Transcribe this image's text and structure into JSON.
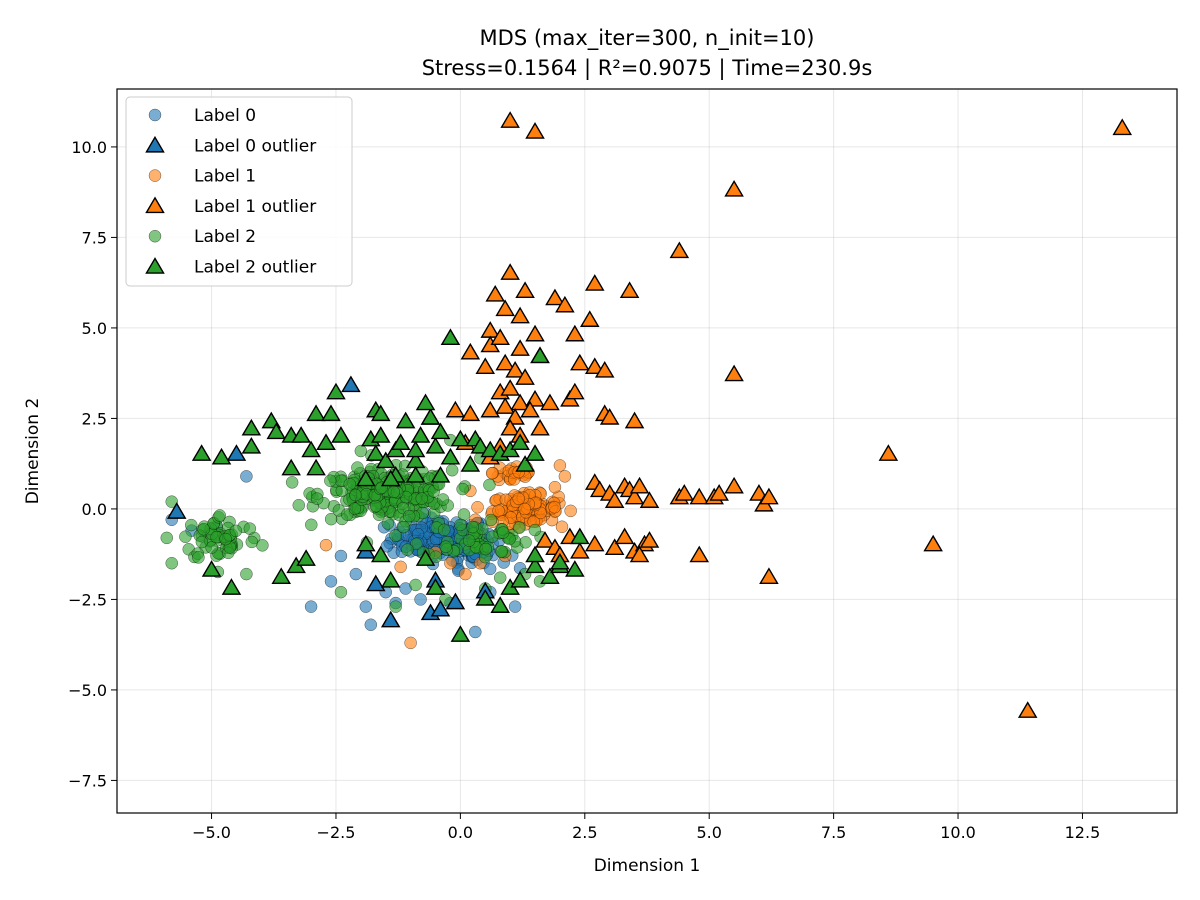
{
  "chart_data": {
    "type": "scatter",
    "title": "MDS (max_iter=300, n_init=10)",
    "subtitle": "Stress=0.1564 | R²=0.9075 | Time=230.9s",
    "xlabel": "Dimension 1",
    "ylabel": "Dimension 2",
    "xlim": [
      -6.9,
      14.4
    ],
    "ylim": [
      -8.4,
      11.6
    ],
    "xticks": [
      -5.0,
      -2.5,
      0.0,
      2.5,
      5.0,
      7.5,
      10.0,
      12.5
    ],
    "xtick_labels": [
      "−5.0",
      "−2.5",
      "0.0",
      "2.5",
      "5.0",
      "7.5",
      "10.0",
      "12.5"
    ],
    "yticks": [
      -7.5,
      -5.0,
      -2.5,
      0.0,
      2.5,
      5.0,
      7.5,
      10.0
    ],
    "ytick_labels": [
      "−7.5",
      "−5.0",
      "−2.5",
      "0.0",
      "2.5",
      "5.0",
      "7.5",
      "10.0"
    ],
    "grid": true,
    "legend_position": "top-left",
    "series": [
      {
        "name": "Label 0",
        "marker": "circle",
        "color": "#1f77b4",
        "clusters": [
          [
            -0.4,
            -0.8,
            0.9,
            0.5,
            160
          ],
          [
            0.3,
            -1.2,
            0.6,
            0.4,
            40
          ]
        ],
        "points": [
          [
            -5.8,
            -0.3
          ],
          [
            -5.4,
            -0.6
          ],
          [
            -4.9,
            -0.5
          ],
          [
            -4.3,
            0.9
          ],
          [
            -3,
            -2.7
          ],
          [
            -2.6,
            -2
          ],
          [
            -2.4,
            -1.3
          ],
          [
            -2.1,
            -1.8
          ],
          [
            -1.9,
            -2.7
          ],
          [
            -1.8,
            -3.2
          ],
          [
            -1.5,
            -2.3
          ],
          [
            -1.3,
            -2.6
          ],
          [
            -1.1,
            -2.2
          ],
          [
            -0.8,
            -2.5
          ],
          [
            -0.2,
            -2.6
          ],
          [
            0.3,
            -3.4
          ],
          [
            0.6,
            -2.3
          ],
          [
            1.1,
            -2.7
          ],
          [
            1.3,
            -0.3
          ],
          [
            1.5,
            0.2
          ]
        ]
      },
      {
        "name": "Label 0 outlier",
        "marker": "triangle",
        "color": "#1f77b4",
        "points": [
          [
            -5.7,
            -0.1
          ],
          [
            -4.5,
            1.5
          ],
          [
            -2.2,
            3.4
          ],
          [
            -1.9,
            -1.2
          ],
          [
            -1.7,
            -2.1
          ],
          [
            -1.4,
            -3.1
          ],
          [
            -0.6,
            -2.9
          ],
          [
            -0.6,
            2.5
          ],
          [
            -0.5,
            -2
          ],
          [
            -0.4,
            -2.8
          ],
          [
            -0.1,
            -2.6
          ],
          [
            0.5,
            -2.3
          ]
        ]
      },
      {
        "name": "Label 1",
        "marker": "circle",
        "color": "#ff7f0e",
        "clusters": [
          [
            1.3,
            0.0,
            0.6,
            0.35,
            130
          ],
          [
            1.1,
            1.0,
            0.4,
            0.3,
            30
          ]
        ],
        "points": [
          [
            -1,
            -3.7
          ],
          [
            -2.7,
            -1
          ],
          [
            -1.2,
            -1.6
          ],
          [
            -0.5,
            -1.2
          ],
          [
            -0.2,
            -1.5
          ],
          [
            0.1,
            -1.8
          ],
          [
            0.4,
            -1.5
          ],
          [
            0.9,
            -1.3
          ],
          [
            2.0,
            1.2
          ],
          [
            2.1,
            0.9
          ],
          [
            1.9,
            0.6
          ],
          [
            0.3,
            -0.3
          ],
          [
            0.2,
            0.5
          ]
        ]
      },
      {
        "name": "Label 1 outlier",
        "marker": "triangle",
        "color": "#ff7f0e",
        "points": [
          [
            1,
            10.7
          ],
          [
            1.5,
            10.4
          ],
          [
            13.3,
            10.5
          ],
          [
            5.5,
            8.8
          ],
          [
            4.4,
            7.1
          ],
          [
            3.4,
            6.0
          ],
          [
            2.7,
            6.2
          ],
          [
            1,
            6.5
          ],
          [
            0.7,
            5.9
          ],
          [
            1.3,
            6.0
          ],
          [
            1.9,
            5.8
          ],
          [
            2.1,
            5.6
          ],
          [
            2.6,
            5.2
          ],
          [
            0.9,
            5.5
          ],
          [
            1.2,
            5.3
          ],
          [
            0.6,
            4.9
          ],
          [
            1.5,
            4.8
          ],
          [
            2.3,
            4.8
          ],
          [
            0.2,
            4.3
          ],
          [
            0.6,
            4.5
          ],
          [
            0.8,
            4.7
          ],
          [
            1.2,
            4.4
          ],
          [
            0.9,
            4.0
          ],
          [
            1.1,
            3.8
          ],
          [
            1.3,
            3.6
          ],
          [
            2.7,
            3.9
          ],
          [
            2.4,
            4.0
          ],
          [
            2.9,
            3.8
          ],
          [
            5.5,
            3.7
          ],
          [
            0.8,
            3.2
          ],
          [
            1,
            3.3
          ],
          [
            1.2,
            2.9
          ],
          [
            1.5,
            3.0
          ],
          [
            1.8,
            2.9
          ],
          [
            2.2,
            3.0
          ],
          [
            2.3,
            3.2
          ],
          [
            0.2,
            2.6
          ],
          [
            0.6,
            2.7
          ],
          [
            0.9,
            2.8
          ],
          [
            1.1,
            2.5
          ],
          [
            1.4,
            2.7
          ],
          [
            2.9,
            2.6
          ],
          [
            3.0,
            2.5
          ],
          [
            3.5,
            2.4
          ],
          [
            1,
            2.2
          ],
          [
            1.2,
            2.0
          ],
          [
            1.6,
            2.2
          ],
          [
            0.8,
            1.7
          ],
          [
            0.6,
            1.4
          ],
          [
            0.1,
            1.8
          ],
          [
            8.6,
            1.5
          ],
          [
            2.7,
            0.7
          ],
          [
            2.8,
            0.5
          ],
          [
            3.0,
            0.4
          ],
          [
            3.1,
            0.2
          ],
          [
            3.3,
            0.6
          ],
          [
            3.4,
            0.5
          ],
          [
            3.5,
            0.3
          ],
          [
            3.6,
            0.6
          ],
          [
            3.8,
            0.2
          ],
          [
            4.4,
            0.3
          ],
          [
            4.5,
            0.4
          ],
          [
            4.8,
            0.3
          ],
          [
            5.1,
            0.3
          ],
          [
            5.2,
            0.4
          ],
          [
            5.5,
            0.6
          ],
          [
            6.0,
            0.4
          ],
          [
            6.1,
            0.1
          ],
          [
            6.2,
            0.3
          ],
          [
            1.7,
            -0.9
          ],
          [
            1.9,
            -1.1
          ],
          [
            2.0,
            -1.3
          ],
          [
            2.2,
            -0.8
          ],
          [
            2.4,
            -1.2
          ],
          [
            2.7,
            -1.0
          ],
          [
            3.1,
            -1.1
          ],
          [
            3.3,
            -0.8
          ],
          [
            3.5,
            -1.2
          ],
          [
            3.7,
            -1.0
          ],
          [
            3.8,
            -0.9
          ],
          [
            3.6,
            -1.3
          ],
          [
            4.8,
            -1.3
          ],
          [
            6.2,
            -1.9
          ],
          [
            9.5,
            -1.0
          ],
          [
            11.4,
            -5.6
          ],
          [
            0.5,
            3.9
          ],
          [
            1.6,
            4.2
          ],
          [
            -0.1,
            2.7
          ]
        ]
      },
      {
        "name": "Label 2",
        "marker": "circle",
        "color": "#2ca02c",
        "clusters": [
          [
            -1.5,
            0.4,
            1.2,
            0.6,
            260
          ],
          [
            -4.8,
            -0.8,
            0.7,
            0.6,
            60
          ],
          [
            0.3,
            -0.8,
            1.0,
            0.5,
            60
          ]
        ],
        "points": [
          [
            -5.8,
            0.2
          ],
          [
            -5.9,
            -0.8
          ],
          [
            -5.8,
            -1.5
          ],
          [
            -4.3,
            -1.8
          ],
          [
            -2.4,
            -2.3
          ],
          [
            -1.3,
            -2.7
          ],
          [
            -0.9,
            -2.1
          ],
          [
            -0.3,
            -2.5
          ],
          [
            0.5,
            -2.2
          ],
          [
            1.3,
            -1.8
          ],
          [
            1.6,
            -2.0
          ],
          [
            -0.2,
            1.9
          ],
          [
            0.4,
            1.4
          ],
          [
            0.8,
            -1.9
          ],
          [
            -2.0,
            1.6
          ]
        ]
      },
      {
        "name": "Label 2 outlier",
        "marker": "triangle",
        "color": "#2ca02c",
        "points": [
          [
            -5.2,
            1.5
          ],
          [
            -4.8,
            1.4
          ],
          [
            -4.2,
            2.2
          ],
          [
            -4.2,
            1.7
          ],
          [
            -3.8,
            2.4
          ],
          [
            -3.7,
            2.1
          ],
          [
            -3.4,
            2.0
          ],
          [
            -3.4,
            1.1
          ],
          [
            -3.2,
            2.0
          ],
          [
            -3.0,
            1.6
          ],
          [
            -2.9,
            2.6
          ],
          [
            -2.9,
            1.1
          ],
          [
            -2.7,
            1.8
          ],
          [
            -2.6,
            2.6
          ],
          [
            -2.5,
            3.2
          ],
          [
            -2.4,
            2.0
          ],
          [
            -1.7,
            2.7
          ],
          [
            -1.6,
            2.6
          ],
          [
            -1.8,
            1.9
          ],
          [
            -1.7,
            1.5
          ],
          [
            -1.6,
            2.0
          ],
          [
            -1.9,
            0.8
          ],
          [
            -1.5,
            1.3
          ],
          [
            -1.3,
            1.6
          ],
          [
            -1.2,
            1.8
          ],
          [
            -1.1,
            2.4
          ],
          [
            -0.9,
            1.3
          ],
          [
            -0.8,
            2.0
          ],
          [
            -0.6,
            2.5
          ],
          [
            -0.5,
            1.7
          ],
          [
            -0.4,
            0.9
          ],
          [
            -0.2,
            1.4
          ],
          [
            0.0,
            1.9
          ],
          [
            0.3,
            1.9
          ],
          [
            0.4,
            1.7
          ],
          [
            0.6,
            1.6
          ],
          [
            0.8,
            1.5
          ],
          [
            1.0,
            1.6
          ],
          [
            1.2,
            1.8
          ],
          [
            1.3,
            1.2
          ],
          [
            1.5,
            1.5
          ],
          [
            -0.7,
            2.9
          ],
          [
            -1.9,
            -1.0
          ],
          [
            -1.6,
            -1.3
          ],
          [
            -1.4,
            -2.0
          ],
          [
            -0.7,
            -1.4
          ],
          [
            -0.5,
            -2.2
          ],
          [
            0.0,
            -3.5
          ],
          [
            0.5,
            -2.5
          ],
          [
            1.0,
            -2.2
          ],
          [
            1.2,
            -2.0
          ],
          [
            1.5,
            -1.6
          ],
          [
            1.8,
            -1.9
          ],
          [
            2.0,
            -1.6
          ],
          [
            2.3,
            -1.7
          ],
          [
            2.4,
            -0.8
          ],
          [
            -5.0,
            -1.7
          ],
          [
            -4.6,
            -2.2
          ],
          [
            -3.6,
            -1.9
          ],
          [
            -3.3,
            -1.6
          ],
          [
            -3.1,
            -1.4
          ],
          [
            -0.4,
            2.1
          ],
          [
            -1.3,
            0.9
          ],
          [
            -0.9,
            0.9
          ],
          [
            1.6,
            4.2
          ],
          [
            -0.2,
            4.7
          ],
          [
            0.2,
            1.2
          ],
          [
            1.5,
            -1.3
          ],
          [
            0.8,
            -2.7
          ],
          [
            -0.9,
            1.6
          ],
          [
            -1.4,
            0.8
          ],
          [
            2.0,
            -1.5
          ]
        ]
      }
    ]
  }
}
